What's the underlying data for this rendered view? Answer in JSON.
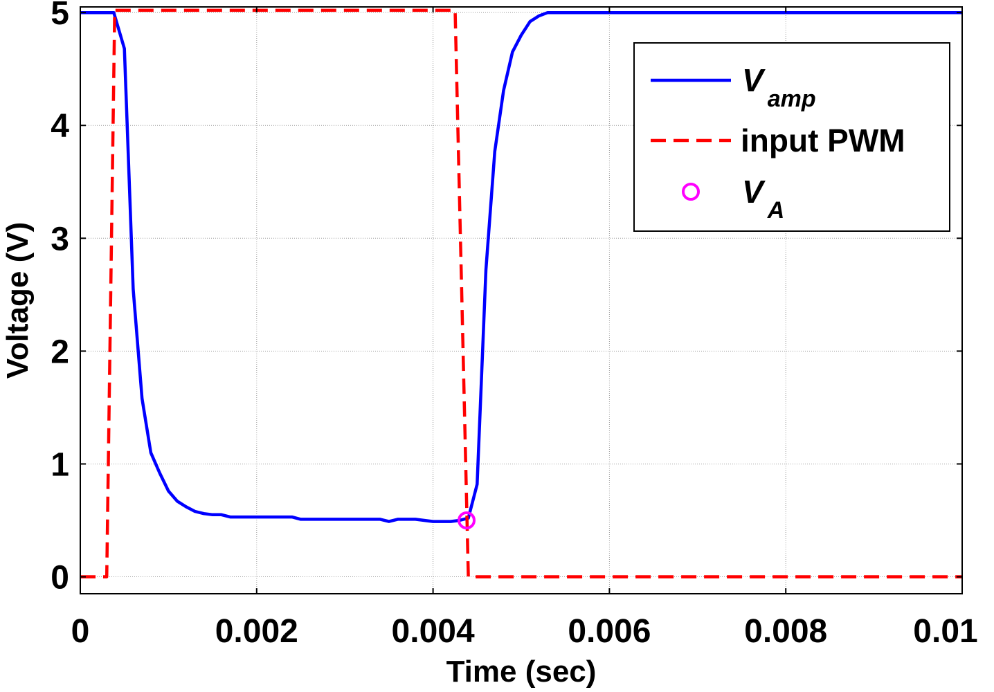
{
  "chart_data": {
    "type": "line",
    "xlabel": "Time (sec)",
    "ylabel": "Voltage (V)",
    "xlim": [
      0,
      0.01
    ],
    "ylim": [
      -0.15,
      5.05
    ],
    "grid": true,
    "legend_position": "top-right",
    "x_ticks": [
      {
        "value": 0,
        "label": "0"
      },
      {
        "value": 0.002,
        "label": "0.002"
      },
      {
        "value": 0.004,
        "label": "0.004"
      },
      {
        "value": 0.006,
        "label": "0.006"
      },
      {
        "value": 0.008,
        "label": "0.008"
      },
      {
        "value": 0.01,
        "label": "0.01"
      }
    ],
    "y_ticks": [
      {
        "value": 0,
        "label": "0"
      },
      {
        "value": 1,
        "label": "1"
      },
      {
        "value": 2,
        "label": "2"
      },
      {
        "value": 3,
        "label": "3"
      },
      {
        "value": 4,
        "label": "4"
      },
      {
        "value": 5,
        "label": "5"
      }
    ],
    "series": [
      {
        "name": "V_amp",
        "legend_main": "V",
        "legend_sub": "amp",
        "style": "solid",
        "color": "#0000ff",
        "x": [
          0,
          0.00038,
          0.0005,
          0.0006,
          0.0007,
          0.0008,
          0.0009,
          0.001,
          0.0011,
          0.0012,
          0.0013,
          0.0014,
          0.0015,
          0.0016,
          0.0017,
          0.0018,
          0.002,
          0.0022,
          0.0024,
          0.0025,
          0.0027,
          0.003,
          0.0032,
          0.0034,
          0.0035,
          0.0036,
          0.0038,
          0.004,
          0.0042,
          0.0043,
          0.0044,
          0.0045,
          0.0046,
          0.0047,
          0.0048,
          0.0049,
          0.005,
          0.0051,
          0.0052,
          0.0053,
          0.006,
          0.007,
          0.008,
          0.009,
          0.01
        ],
        "y": [
          5.0,
          5.0,
          4.68,
          2.55,
          1.58,
          1.1,
          0.92,
          0.76,
          0.67,
          0.62,
          0.58,
          0.56,
          0.55,
          0.55,
          0.53,
          0.53,
          0.53,
          0.53,
          0.53,
          0.51,
          0.51,
          0.51,
          0.51,
          0.51,
          0.49,
          0.51,
          0.51,
          0.49,
          0.49,
          0.5,
          0.52,
          0.82,
          2.72,
          3.77,
          4.31,
          4.65,
          4.8,
          4.92,
          4.97,
          5.0,
          5.0,
          5.0,
          5.0,
          5.0,
          5.0
        ]
      },
      {
        "name": "input PWM",
        "legend_main": "input PWM",
        "style": "dashed",
        "color": "#ff0000",
        "x": [
          0,
          0.0003,
          0.00039,
          0.00425,
          0.0044,
          0.0045,
          0.01
        ],
        "y": [
          0,
          0,
          5.02,
          5.02,
          0,
          0,
          0
        ]
      },
      {
        "name": "V_A",
        "legend_main": "V",
        "legend_sub": "A",
        "style": "marker-circle",
        "color": "#ff00ff",
        "x": [
          0.00438
        ],
        "y": [
          0.5
        ]
      }
    ]
  }
}
